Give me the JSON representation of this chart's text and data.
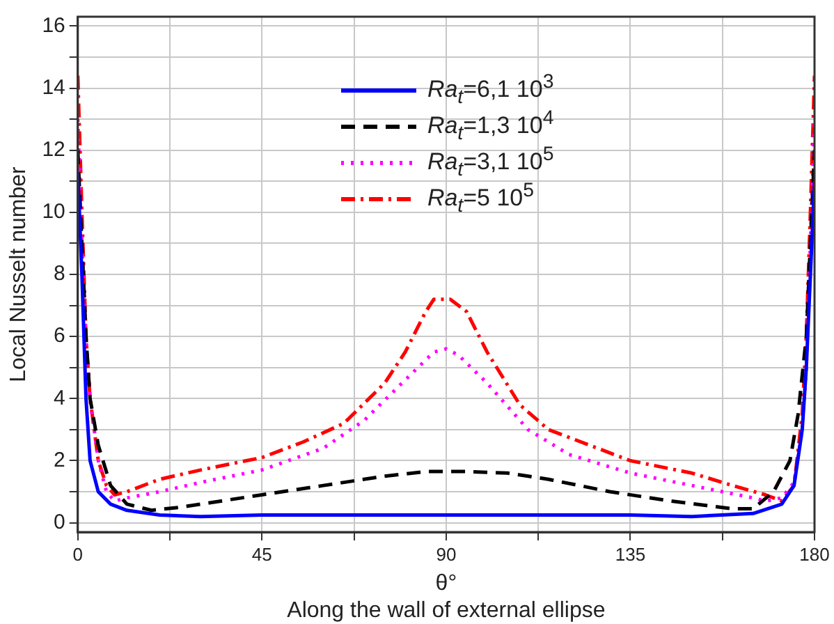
{
  "chart_data": {
    "type": "line",
    "xlabel": "θ°\nAlong the wall of external ellipse",
    "ylabel": "Local Nusselt number",
    "xlim": [
      0,
      180
    ],
    "ylim": [
      -0.3,
      16.3
    ],
    "xticks": [
      0,
      {
        "value": 22.5,
        "label": null
      },
      45,
      {
        "value": 67.5,
        "label": null
      },
      90,
      {
        "value": 112.5,
        "label": null
      },
      135,
      {
        "value": 157.5,
        "label": null
      },
      180
    ],
    "yticks": [
      0,
      {
        "value": 1,
        "label": null
      },
      2,
      {
        "value": 3,
        "label": null
      },
      4,
      {
        "value": 5,
        "label": null
      },
      6,
      {
        "value": 7,
        "label": null
      },
      8,
      {
        "value": 9,
        "label": null
      },
      10,
      {
        "value": 11,
        "label": null
      },
      12,
      {
        "value": 13,
        "label": null
      },
      14,
      {
        "value": 15,
        "label": null
      },
      16
    ],
    "grid": true,
    "legend": "top",
    "marker": "none",
    "series": [
      {
        "name": "Ra$_{t}$=6,1 10$^{3}$",
        "color": "#0000ff",
        "line_style": "solid",
        "x": [
          0,
          1,
          2,
          3,
          5,
          8,
          12,
          20,
          30,
          45,
          90,
          135,
          150,
          165,
          172,
          175,
          177,
          178,
          179,
          180
        ],
        "values": [
          11.3,
          8,
          4,
          2,
          1,
          0.6,
          0.4,
          0.25,
          0.2,
          0.25,
          0.25,
          0.25,
          0.2,
          0.3,
          0.6,
          1.2,
          3,
          5,
          8,
          11
        ]
      },
      {
        "name": "Ra$_{t}$=1,3 10$^{4}$",
        "color": "#000000",
        "line_style": "dashed",
        "x": [
          0,
          1,
          2,
          3,
          5,
          8,
          12,
          18,
          25,
          35,
          45,
          60,
          75,
          85,
          95,
          105,
          115,
          130,
          145,
          160,
          165,
          170,
          174,
          176,
          178,
          179,
          180
        ],
        "values": [
          12,
          9,
          6,
          4,
          2.5,
          1.2,
          0.6,
          0.4,
          0.5,
          0.7,
          0.9,
          1.2,
          1.5,
          1.65,
          1.65,
          1.6,
          1.4,
          1,
          0.7,
          0.45,
          0.45,
          1,
          2,
          3.5,
          6,
          9,
          12
        ]
      },
      {
        "name": "Ra$_{t}$=3,1 10$^{5}$",
        "color": "#ff00ff",
        "line_style": "dotted",
        "x": [
          0,
          1,
          2,
          3,
          5,
          7,
          9,
          12,
          20,
          30,
          45,
          60,
          70,
          80,
          87,
          90,
          93,
          100,
          110,
          120,
          135,
          150,
          165,
          168,
          172,
          175,
          177,
          178,
          179,
          180
        ],
        "values": [
          13,
          9,
          6,
          4,
          2,
          1,
          0.7,
          0.8,
          1,
          1.3,
          1.7,
          2.4,
          3.3,
          4.6,
          5.5,
          5.6,
          5.4,
          4.5,
          3,
          2.2,
          1.6,
          1.2,
          0.8,
          0.7,
          0.8,
          1.3,
          3,
          5,
          9,
          13
        ]
      },
      {
        "name": "Ra$_{t}$=5 10$^{5}$",
        "color": "#ff0000",
        "line_style": "dashdot",
        "x": [
          0,
          1,
          2,
          3,
          5,
          7,
          9,
          12,
          20,
          30,
          45,
          55,
          65,
          75,
          80,
          85,
          87,
          91,
          95,
          100,
          108,
          115,
          125,
          135,
          150,
          160,
          168,
          172,
          175,
          177,
          178,
          179,
          180
        ],
        "values": [
          14.4,
          10,
          6,
          4,
          2,
          1.2,
          0.9,
          1,
          1.4,
          1.7,
          2.1,
          2.6,
          3.2,
          4.5,
          5.5,
          6.8,
          7.2,
          7.2,
          6.8,
          5.5,
          3.8,
          3,
          2.5,
          2,
          1.6,
          1.2,
          0.9,
          0.7,
          1.2,
          3.5,
          6,
          10,
          14.4
        ]
      }
    ]
  }
}
